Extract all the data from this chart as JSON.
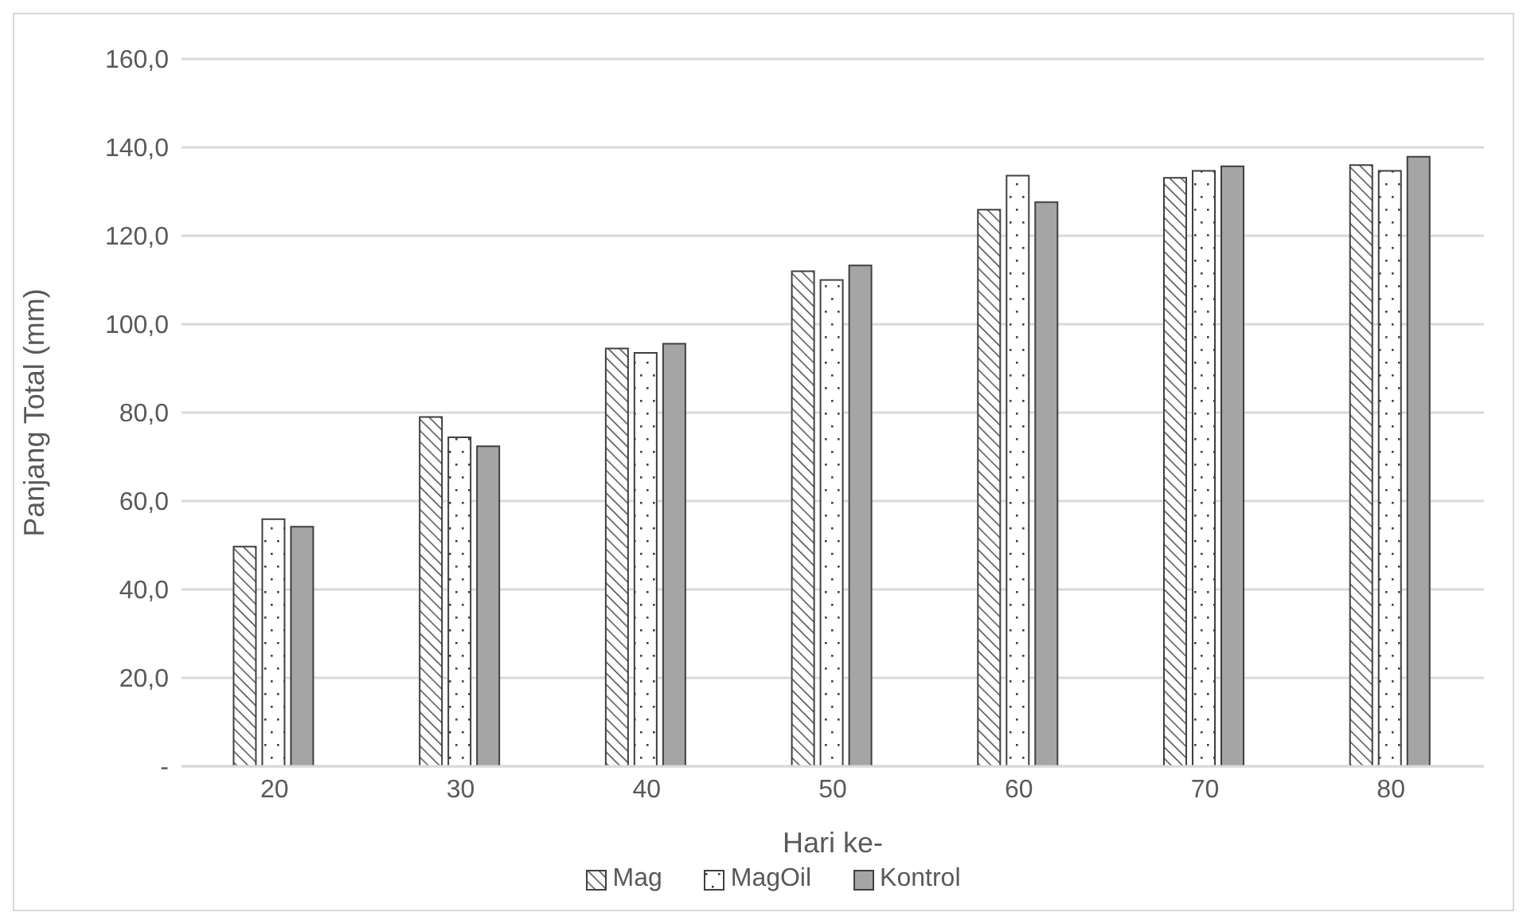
{
  "chart_data": {
    "type": "bar",
    "xlabel": "Hari ke-",
    "ylabel": "Panjang Total (mm)",
    "categories": [
      "20",
      "30",
      "40",
      "50",
      "60",
      "70",
      "80"
    ],
    "series": [
      {
        "name": "Mag",
        "color": "#404040",
        "values": [
          49.7,
          79.0,
          94.5,
          112.0,
          125.9,
          133.1,
          136.0
        ]
      },
      {
        "name": "MagOil",
        "color": "#404040",
        "values": [
          55.9,
          74.4,
          93.5,
          110.0,
          133.6,
          134.7,
          134.7
        ]
      },
      {
        "name": "Kontrol",
        "color": "#a5a5a5",
        "values": [
          54.2,
          72.4,
          95.6,
          113.3,
          127.6,
          135.7,
          137.9
        ]
      }
    ],
    "ylim": [
      0,
      160
    ],
    "yticks": [
      {
        "value": 0,
        "label": "-"
      },
      {
        "value": 20,
        "label": "20,0"
      },
      {
        "value": 40,
        "label": "40,0"
      },
      {
        "value": 60,
        "label": "60,0"
      },
      {
        "value": 80,
        "label": "80,0"
      },
      {
        "value": 100,
        "label": "100,0"
      },
      {
        "value": 120,
        "label": "120,0"
      },
      {
        "value": 140,
        "label": "140,0"
      },
      {
        "value": 160,
        "label": "160,0"
      }
    ],
    "grid": "y",
    "legend": "bottom"
  }
}
